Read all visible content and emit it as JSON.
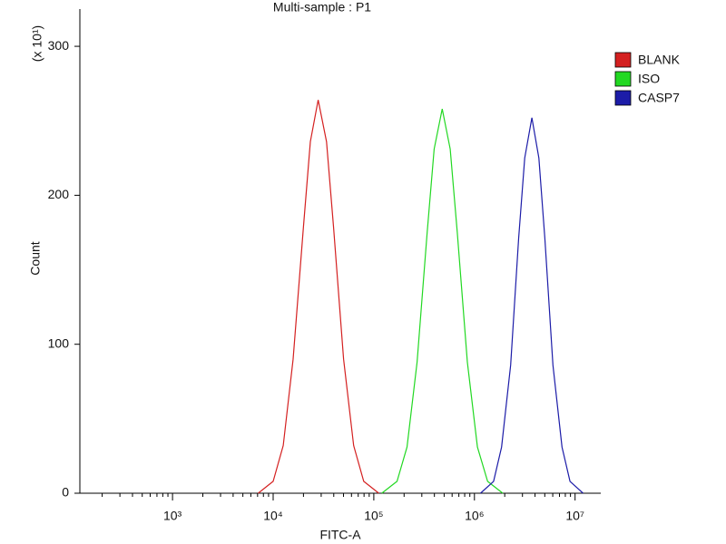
{
  "chart_data": {
    "type": "line",
    "title": "Multi-sample : P1",
    "x_label": "FITC-A",
    "y_label": "Count",
    "y_scale_label": "(x 10¹)",
    "x_log": true,
    "xlim": [
      120,
      18000000
    ],
    "xticks": [
      {
        "value": 1000,
        "label": "10³"
      },
      {
        "value": 10000,
        "label": "10⁴"
      },
      {
        "value": 100000,
        "label": "10⁵"
      },
      {
        "value": 1000000,
        "label": "10⁶"
      },
      {
        "value": 10000000,
        "label": "10⁷"
      }
    ],
    "ylim": [
      0,
      325
    ],
    "yticks": [
      0,
      100,
      200,
      300
    ],
    "legend": "right",
    "series": [
      {
        "name": "BLANK",
        "color": "#d42020",
        "x": [
          7100,
          10000,
          12600,
          15800,
          20000,
          23400,
          28000,
          33900,
          39800,
          50100,
          63100,
          79400,
          112000
        ],
        "values": [
          0,
          8,
          32,
          90,
          179,
          236,
          264,
          236,
          179,
          90,
          32,
          8,
          0
        ]
      },
      {
        "name": "ISO",
        "color": "#22d822",
        "x": [
          120000,
          170000,
          214000,
          269000,
          339000,
          398000,
          479000,
          575000,
          676000,
          851000,
          1070000,
          1350000,
          1910000
        ],
        "values": [
          0,
          8,
          31,
          88,
          175,
          231,
          258,
          231,
          175,
          88,
          31,
          8,
          0
        ]
      },
      {
        "name": "CASP7",
        "color": "#1c1ca8",
        "x": [
          1150000,
          1550000,
          1860000,
          2290000,
          2750000,
          3160000,
          3720000,
          4370000,
          5010000,
          6030000,
          7410000,
          8910000,
          12000000
        ],
        "values": [
          0,
          8,
          31,
          86,
          171,
          225,
          252,
          225,
          171,
          86,
          31,
          8,
          0
        ]
      }
    ]
  }
}
